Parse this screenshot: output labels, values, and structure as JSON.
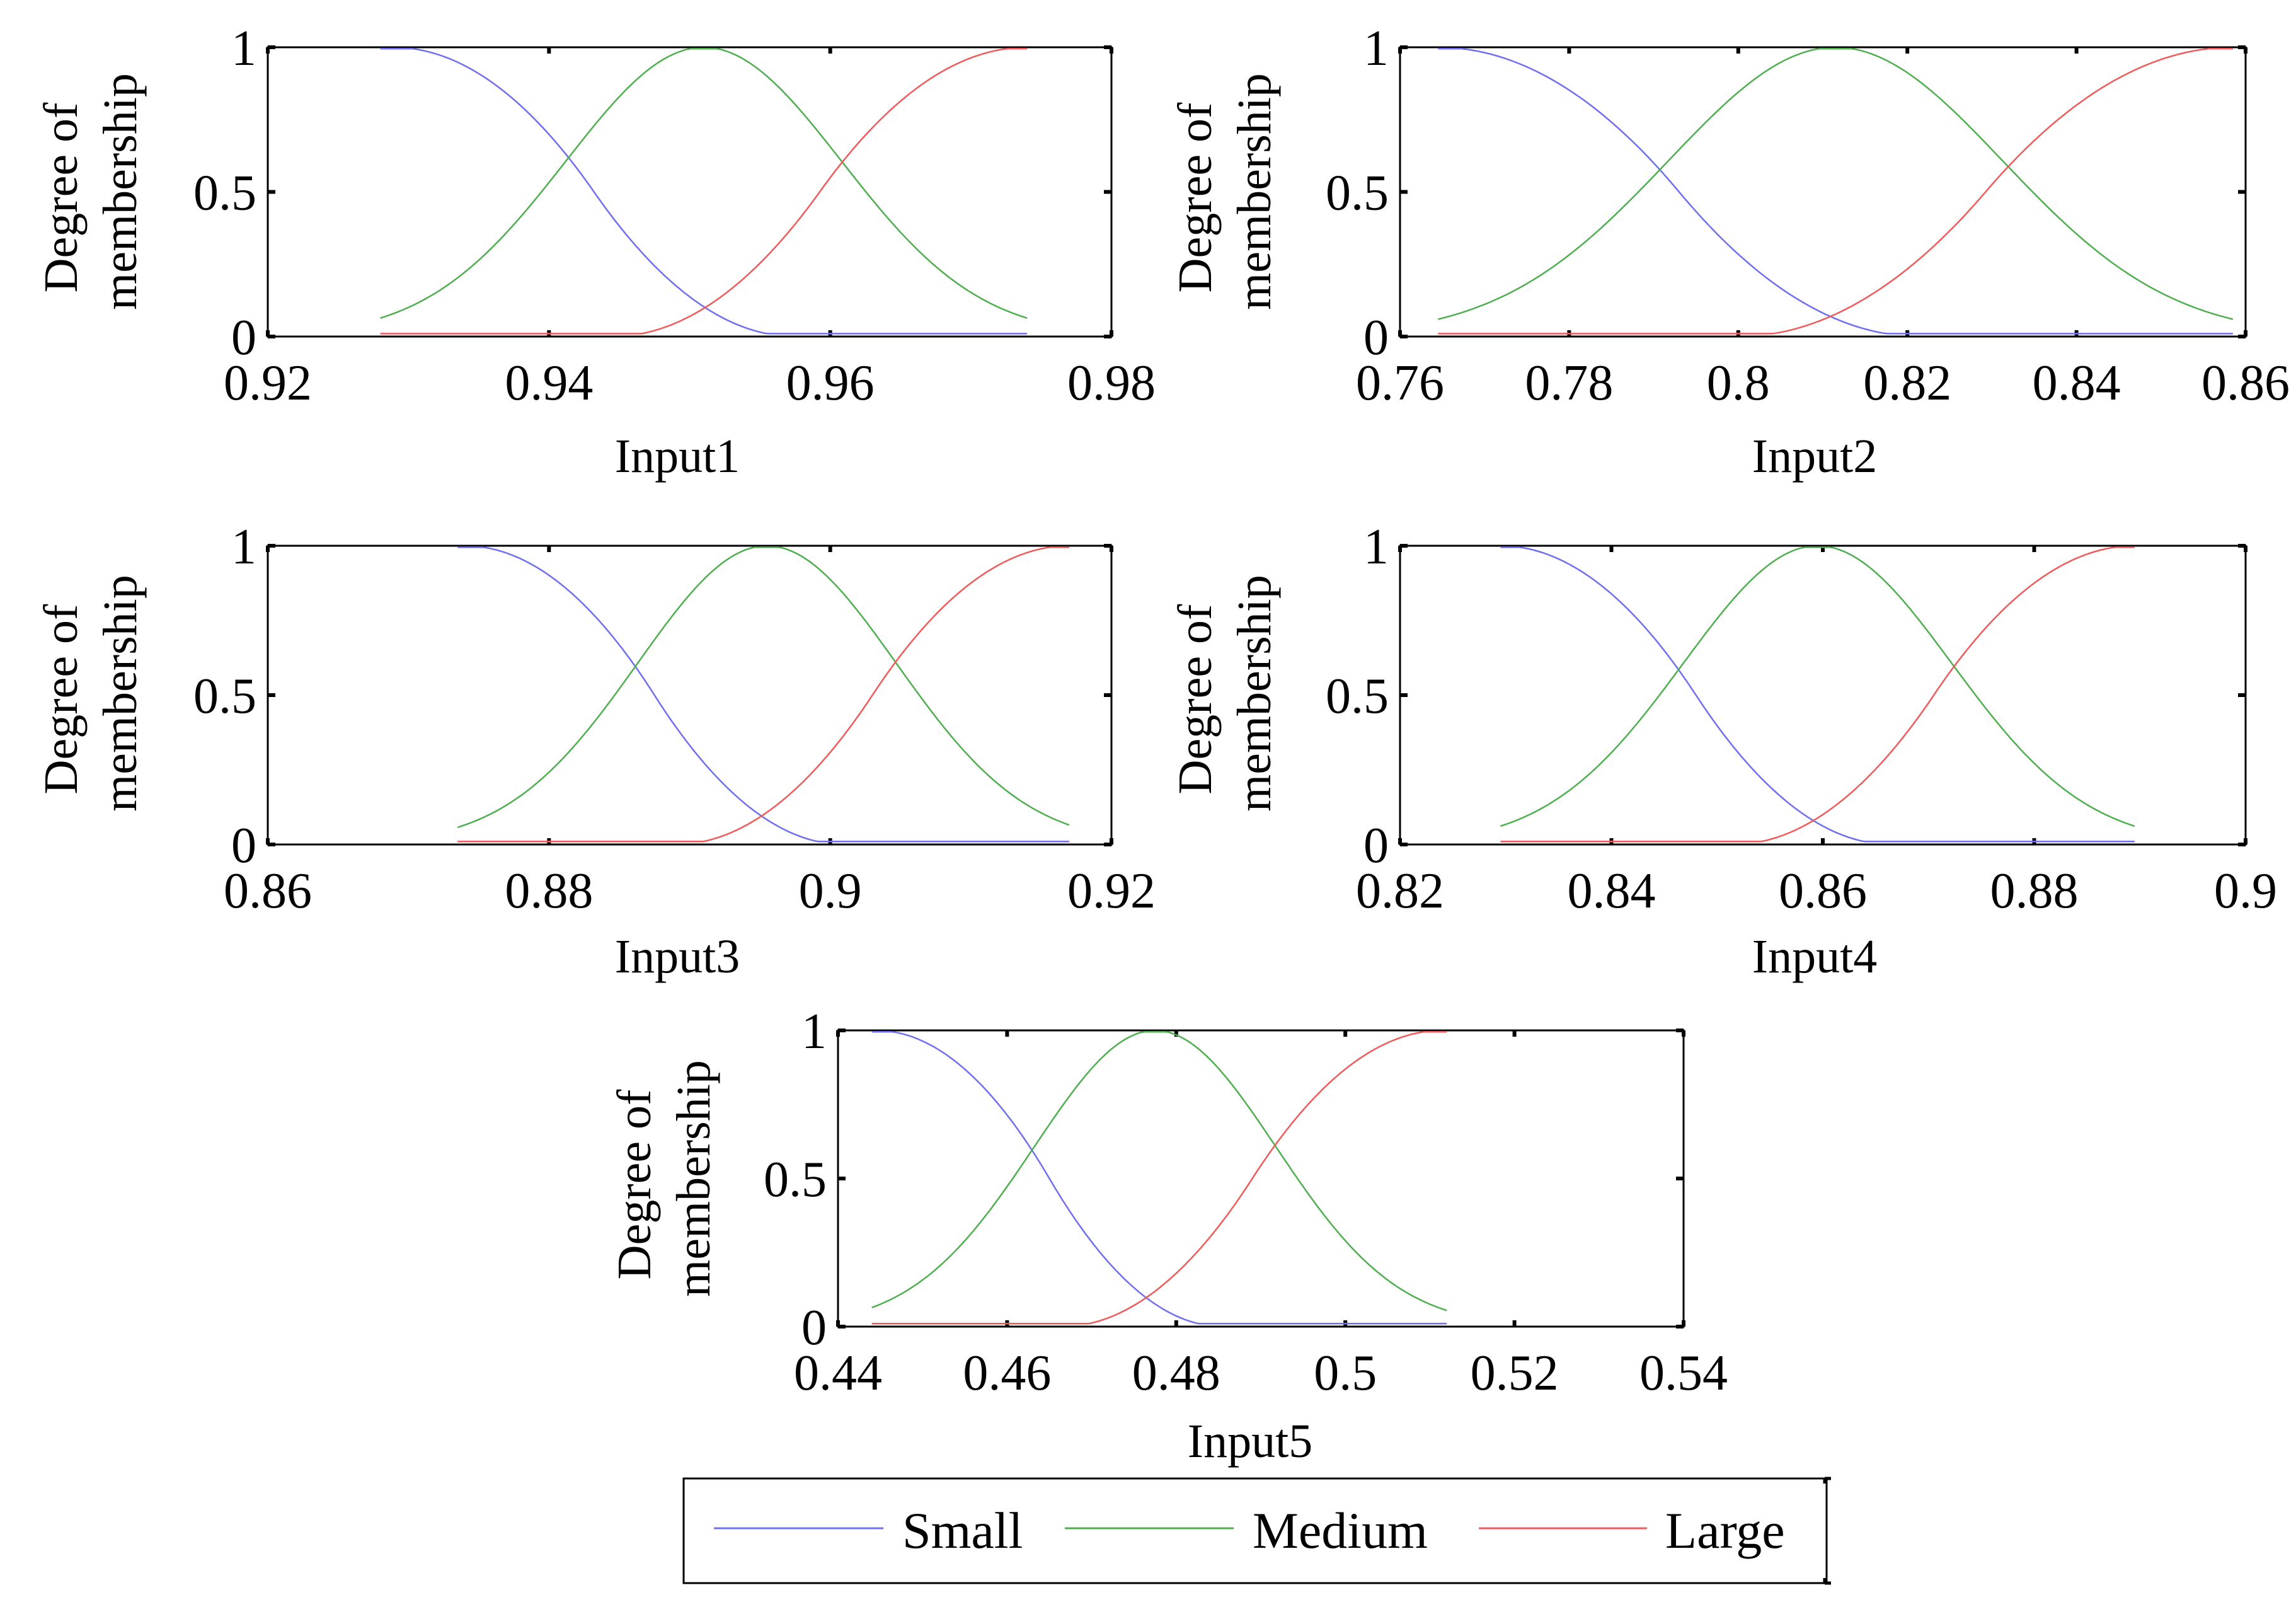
{
  "figure": {
    "y_label_line1": "Degree of",
    "y_label_line2": "membership"
  },
  "legend": {
    "items": [
      {
        "label": "Small",
        "color": "#6f6ff0"
      },
      {
        "label": "Medium",
        "color": "#4fae4f"
      },
      {
        "label": "Large",
        "color": "#f05a5a"
      }
    ]
  },
  "chart_data": [
    {
      "type": "line",
      "xlabel": "Input1",
      "ylabel": "Degree of membership",
      "xlim": [
        0.92,
        0.98
      ],
      "ylim": [
        0,
        1
      ],
      "x_ticks": [
        "0.92",
        "0.94",
        "0.96",
        "0.98"
      ],
      "y_ticks": [
        "0",
        "0.5",
        "1"
      ],
      "series": [
        {
          "name": "Small",
          "shape": "z-shaped",
          "range": [
            0.928,
            0.974
          ],
          "plateau": 0.9289,
          "zero": 0.9575
        },
        {
          "name": "Medium",
          "shape": "gaussian",
          "range": [
            0.928,
            0.974
          ],
          "center": 0.951,
          "sigma": 0.0098
        },
        {
          "name": "Large",
          "shape": "s-shaped",
          "range": [
            0.928,
            0.974
          ],
          "zero": 0.9445,
          "plateau": 0.974
        }
      ]
    },
    {
      "type": "line",
      "xlabel": "Input2",
      "ylabel": "Degree of membership",
      "xlim": [
        0.76,
        0.86
      ],
      "ylim": [
        0,
        1
      ],
      "x_ticks": [
        "0.76",
        "0.78",
        "0.8",
        "0.82",
        "0.84",
        "0.86"
      ],
      "y_ticks": [
        "0",
        "0.5",
        "1"
      ],
      "series": [
        {
          "name": "Small",
          "shape": "z-shaped",
          "range": [
            0.7645,
            0.8585
          ],
          "plateau": 0.7645,
          "zero": 0.8215
        },
        {
          "name": "Medium",
          "shape": "gaussian",
          "range": [
            0.7645,
            0.8585
          ],
          "center": 0.8115,
          "sigma": 0.0198
        },
        {
          "name": "Large",
          "shape": "s-shaped",
          "range": [
            0.7645,
            0.8585
          ],
          "zero": 0.8,
          "plateau": 0.8585
        }
      ]
    },
    {
      "type": "line",
      "xlabel": "Input3",
      "ylabel": "Degree of membership",
      "xlim": [
        0.86,
        0.92
      ],
      "ylim": [
        0,
        1
      ],
      "x_ticks": [
        "0.86",
        "0.88",
        "0.9",
        "0.92"
      ],
      "y_ticks": [
        "0",
        "0.5",
        "1"
      ],
      "series": [
        {
          "name": "Small",
          "shape": "z-shaped",
          "range": [
            0.8735,
            0.917
          ],
          "plateau": 0.874,
          "zero": 0.901
        },
        {
          "name": "Medium",
          "shape": "gaussian",
          "range": [
            0.8735,
            0.917
          ],
          "center": 0.8955,
          "sigma": 0.0092
        },
        {
          "name": "Large",
          "shape": "s-shaped",
          "range": [
            0.8735,
            0.917
          ],
          "zero": 0.889,
          "plateau": 0.917
        }
      ]
    },
    {
      "type": "line",
      "xlabel": "Input4",
      "ylabel": "Degree of membership",
      "xlim": [
        0.82,
        0.9
      ],
      "ylim": [
        0,
        1
      ],
      "x_ticks": [
        "0.82",
        "0.84",
        "0.86",
        "0.88",
        "0.9"
      ],
      "y_ticks": [
        "0",
        "0.5",
        "1"
      ],
      "series": [
        {
          "name": "Small",
          "shape": "z-shaped",
          "range": [
            0.8295,
            0.8895
          ],
          "plateau": 0.8295,
          "zero": 0.8665
        },
        {
          "name": "Medium",
          "shape": "gaussian",
          "range": [
            0.8295,
            0.8895
          ],
          "center": 0.8595,
          "sigma": 0.0127
        },
        {
          "name": "Large",
          "shape": "s-shaped",
          "range": [
            0.8295,
            0.8895
          ],
          "zero": 0.8515,
          "plateau": 0.8895
        }
      ]
    },
    {
      "type": "line",
      "xlabel": "Input5",
      "ylabel": "Degree of membership",
      "xlim": [
        0.44,
        0.54
      ],
      "ylim": [
        0,
        1
      ],
      "x_ticks": [
        "0.44",
        "0.46",
        "0.48",
        "0.5",
        "0.52",
        "0.54"
      ],
      "y_ticks": [
        "0",
        "0.5",
        "1"
      ],
      "series": [
        {
          "name": "Small",
          "shape": "z-shaped",
          "range": [
            0.444,
            0.512
          ],
          "plateau": 0.4445,
          "zero": 0.4855
        },
        {
          "name": "Medium",
          "shape": "gaussian",
          "range": [
            0.444,
            0.512
          ],
          "center": 0.4775,
          "sigma": 0.0143
        },
        {
          "name": "Large",
          "shape": "s-shaped",
          "range": [
            0.444,
            0.512
          ],
          "zero": 0.4665,
          "plateau": 0.5115
        }
      ]
    }
  ]
}
